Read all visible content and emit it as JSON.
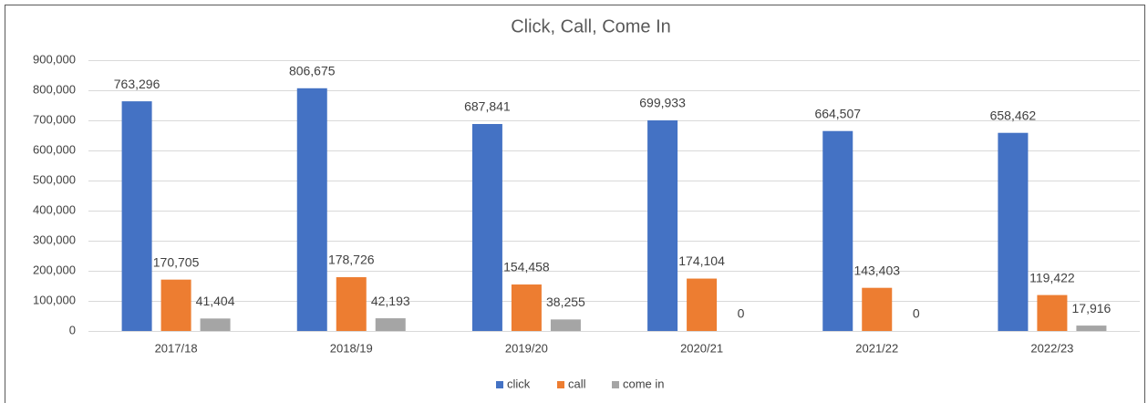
{
  "chart_data": {
    "type": "bar",
    "title": "Click, Call, Come In",
    "categories": [
      "2017/18",
      "2018/19",
      "2019/20",
      "2020/21",
      "2021/22",
      "2022/23"
    ],
    "series": [
      {
        "name": "click",
        "color": "#4472c4",
        "values": [
          763296,
          806675,
          687841,
          699933,
          664507,
          658462
        ],
        "value_labels": [
          "763,296",
          "806,675",
          "687,841",
          "699,933",
          "664,507",
          "658,462"
        ]
      },
      {
        "name": "call",
        "color": "#ed7d31",
        "values": [
          170705,
          178726,
          154458,
          174104,
          143403,
          119422
        ],
        "value_labels": [
          "170,705",
          "178,726",
          "154,458",
          "174,104",
          "143,403",
          "119,422"
        ]
      },
      {
        "name": "come in",
        "color": "#a5a5a5",
        "values": [
          41404,
          42193,
          38255,
          0,
          0,
          17916
        ],
        "value_labels": [
          "41,404",
          "42,193",
          "38,255",
          "0",
          "0",
          "17,916"
        ]
      }
    ],
    "ylim": [
      0,
      900000
    ],
    "yticks": [
      0,
      {
        "value": 100000,
        "label": "100,000"
      },
      {
        "value": 200000,
        "label": "200,000"
      },
      {
        "value": 300000,
        "label": "300,000"
      },
      {
        "value": 400000,
        "label": "400,000"
      },
      {
        "value": 500000,
        "label": "500,000"
      },
      {
        "value": 600000,
        "label": "600,000"
      },
      {
        "value": 700000,
        "label": "700,000"
      },
      {
        "value": 800000,
        "label": "800,000"
      },
      {
        "value": 900000,
        "label": "900,000"
      }
    ],
    "grid": true,
    "legend": "bottom"
  }
}
